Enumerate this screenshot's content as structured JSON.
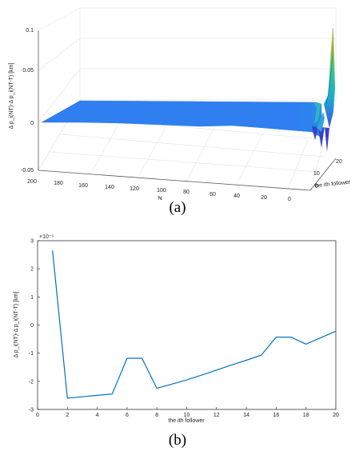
{
  "chart_data": [
    {
      "type": "surface",
      "panel_label": "(a)",
      "xlabel": "N",
      "ylabel": "the ith follower",
      "zlabel": "Δ p_i(NT)-Δ p_i(NT-T) [km]",
      "x_ticks": [
        "200",
        "180",
        "160",
        "140",
        "120",
        "100",
        "80",
        "60",
        "40",
        "20",
        "0"
      ],
      "y_ticks": [
        "0",
        "10",
        "20"
      ],
      "z_ticks": [
        "0.1",
        "0.05",
        "0",
        "-0.05"
      ],
      "xlim": [
        0,
        200
      ],
      "ylim": [
        0,
        20
      ],
      "zlim": [
        -0.05,
        0.1
      ],
      "grid": true,
      "colormap": "parula",
      "description_values": {
        "flat_level": 0,
        "peak_near_N0_i20": 0.1,
        "dip_near_N0": -0.04
      }
    },
    {
      "type": "line",
      "panel_label": "(b)",
      "xlabel": "the ith follower",
      "ylabel": "Δ p_i(NT)-Δ p_i(NT-T) [km]",
      "y_exponent": "×10⁻⁵",
      "xlim": [
        0,
        20
      ],
      "ylim": [
        -3,
        3
      ],
      "x_ticks": [
        "0",
        "2",
        "4",
        "6",
        "8",
        "10",
        "12",
        "14",
        "16",
        "18",
        "20"
      ],
      "y_ticks": [
        "3",
        "2",
        "1",
        "0",
        "-1",
        "-2",
        "-3"
      ],
      "grid": false,
      "series": [
        {
          "color": "#0072bd",
          "x": [
            1,
            2,
            3,
            4,
            5,
            6,
            7,
            8,
            9,
            10,
            11,
            12,
            13,
            14,
            15,
            16,
            17,
            18,
            19,
            20
          ],
          "y": [
            2.65,
            -2.6,
            -2.55,
            -2.5,
            -2.45,
            -1.18,
            -1.18,
            -2.25,
            -2.1,
            -1.95,
            -1.78,
            -1.6,
            -1.42,
            -1.25,
            -1.07,
            -0.43,
            -0.43,
            -0.68,
            -0.45,
            -0.22
          ]
        }
      ]
    }
  ]
}
